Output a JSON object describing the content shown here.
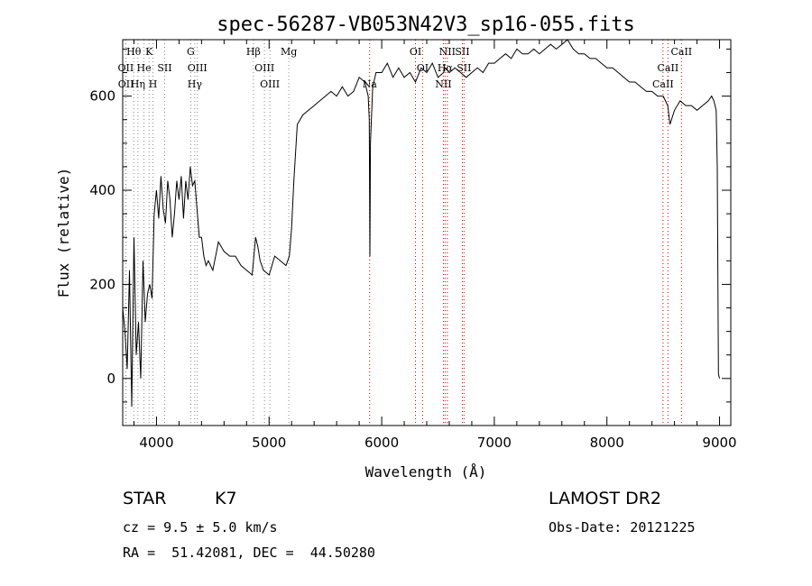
{
  "chart_data": {
    "type": "line",
    "title": "spec-56287-VB053N42V3_sp16-055.fits",
    "xlabel": "Wavelength (Å)",
    "ylabel": "Flux (relative)",
    "xlim": [
      3700,
      9100
    ],
    "ylim": [
      -100,
      720
    ],
    "xticks": [
      4000,
      5000,
      6000,
      7000,
      8000,
      9000
    ],
    "yticks": [
      0,
      200,
      400,
      600
    ],
    "grid": false,
    "series": [
      {
        "x": [
          3700,
          3720,
          3740,
          3760,
          3780,
          3800,
          3820,
          3840,
          3860,
          3880,
          3900,
          3920,
          3940,
          3960,
          3980,
          4000,
          4020,
          4040,
          4060,
          4080,
          4100,
          4120,
          4140,
          4160,
          4180,
          4200,
          4220,
          4240,
          4260,
          4280,
          4300,
          4320,
          4340,
          4360,
          4380,
          4400,
          4420,
          4440,
          4460,
          4480,
          4500,
          4550,
          4600,
          4650,
          4700,
          4750,
          4800,
          4850,
          4880,
          4900,
          4920,
          4950,
          5000,
          5050,
          5100,
          5150,
          5180,
          5200,
          5220,
          5250,
          5300,
          5350,
          5400,
          5450,
          5500,
          5550,
          5600,
          5650,
          5700,
          5750,
          5800,
          5850,
          5880,
          5890,
          5895,
          5900,
          5920,
          5950,
          6000,
          6050,
          6100,
          6150,
          6200,
          6250,
          6300,
          6350,
          6400,
          6450,
          6500,
          6550,
          6563,
          6600,
          6650,
          6700,
          6750,
          6800,
          6850,
          6900,
          6950,
          7000,
          7050,
          7100,
          7150,
          7200,
          7250,
          7300,
          7350,
          7400,
          7450,
          7500,
          7550,
          7600,
          7650,
          7700,
          7750,
          7800,
          7850,
          7900,
          7950,
          8000,
          8050,
          8100,
          8150,
          8200,
          8250,
          8300,
          8350,
          8400,
          8450,
          8500,
          8540,
          8560,
          8600,
          8650,
          8700,
          8750,
          8800,
          8850,
          8900,
          8930,
          8950,
          8960,
          8970,
          8980,
          8990,
          9000
        ],
        "y": [
          150,
          100,
          20,
          230,
          -60,
          300,
          50,
          120,
          0,
          250,
          120,
          180,
          200,
          170,
          350,
          400,
          340,
          430,
          360,
          330,
          420,
          380,
          300,
          350,
          420,
          380,
          430,
          340,
          420,
          380,
          450,
          410,
          420,
          360,
          300,
          300,
          260,
          240,
          250,
          240,
          230,
          290,
          270,
          260,
          260,
          240,
          230,
          220,
          300,
          280,
          250,
          230,
          220,
          260,
          250,
          240,
          260,
          320,
          420,
          540,
          560,
          570,
          580,
          590,
          600,
          610,
          600,
          620,
          600,
          610,
          640,
          630,
          600,
          550,
          260,
          500,
          620,
          650,
          650,
          670,
          640,
          660,
          640,
          650,
          630,
          660,
          650,
          670,
          640,
          650,
          660,
          650,
          660,
          650,
          640,
          650,
          660,
          650,
          670,
          670,
          680,
          690,
          680,
          700,
          690,
          690,
          700,
          690,
          700,
          710,
          700,
          710,
          720,
          700,
          690,
          690,
          680,
          680,
          670,
          660,
          660,
          650,
          640,
          630,
          630,
          620,
          610,
          610,
          600,
          600,
          580,
          540,
          570,
          590,
          580,
          580,
          570,
          580,
          590,
          600,
          590,
          580,
          570,
          450,
          10,
          0
        ]
      }
    ],
    "line_markers": [
      {
        "label": "Hθ",
        "wl": 3798,
        "row": 0
      },
      {
        "label": "K",
        "wl": 3934,
        "row": 0
      },
      {
        "label": "G",
        "wl": 4304,
        "row": 0
      },
      {
        "label": "Hβ",
        "wl": 4861,
        "row": 0
      },
      {
        "label": "Mg",
        "wl": 5175,
        "row": 0
      },
      {
        "label": "OI",
        "wl": 6300,
        "row": 0
      },
      {
        "label": "NII",
        "wl": 6583,
        "row": 0
      },
      {
        "label": "SII",
        "wl": 6716,
        "row": 0
      },
      {
        "label": "CaII",
        "wl": 8662,
        "row": 0
      },
      {
        "label": "OII",
        "wl": 3727,
        "row": 1
      },
      {
        "label": "He",
        "wl": 3889,
        "row": 1
      },
      {
        "label": "SII",
        "wl": 4072,
        "row": 1
      },
      {
        "label": "OIII",
        "wl": 4363,
        "row": 1
      },
      {
        "label": "OIII",
        "wl": 4959,
        "row": 1
      },
      {
        "label": "OI",
        "wl": 6363,
        "row": 1
      },
      {
        "label": "Hα",
        "wl": 6563,
        "row": 1
      },
      {
        "label": "SII",
        "wl": 6731,
        "row": 1
      },
      {
        "label": "CaII",
        "wl": 8542,
        "row": 1
      },
      {
        "label": "OII",
        "wl": 3729,
        "row": 2
      },
      {
        "label": "Hη",
        "wl": 3835,
        "row": 2
      },
      {
        "label": "H",
        "wl": 3969,
        "row": 2
      },
      {
        "label": "Hγ",
        "wl": 4340,
        "row": 2
      },
      {
        "label": "OIII",
        "wl": 5007,
        "row": 2
      },
      {
        "label": "Na",
        "wl": 5893,
        "row": 2
      },
      {
        "label": "NII",
        "wl": 6548,
        "row": 2
      },
      {
        "label": "CaII",
        "wl": 8498,
        "row": 2
      }
    ]
  },
  "footer": {
    "class": "STAR",
    "subclass": "K7",
    "survey": "LAMOST DR2",
    "cz": "cz = 9.5 ± 5.0 km/s",
    "obs_date": "Obs-Date: 20121225",
    "coords": "RA =  51.42081, DEC =  44.50280"
  },
  "colors": {
    "line": "#000000",
    "marker": "#cc0000",
    "dotted": "#888888"
  }
}
